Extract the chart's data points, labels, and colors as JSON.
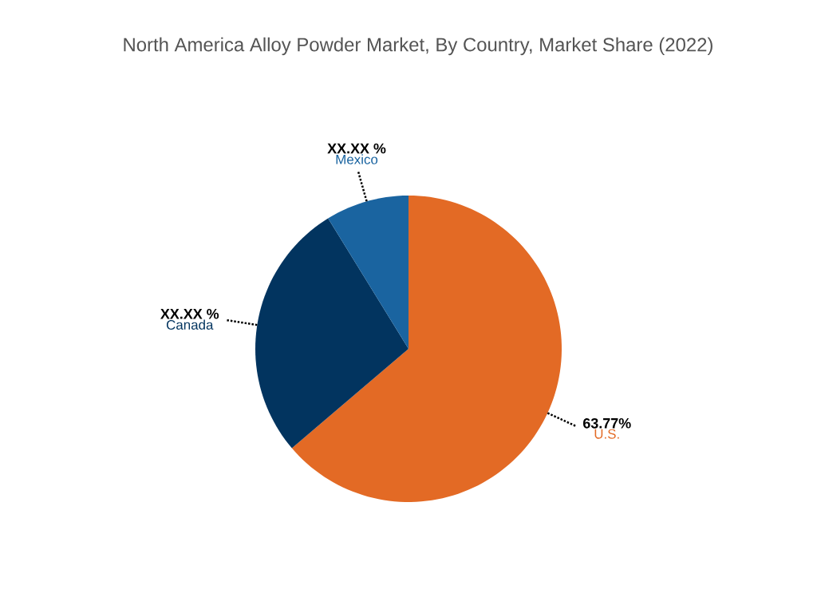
{
  "chart_data": {
    "type": "pie",
    "title": "North America Alloy Powder Market, By Country, Market Share (2022)",
    "categories": [
      "U.S.",
      "Canada",
      "Mexico"
    ],
    "values": [
      63.77,
      27.43,
      8.8
    ],
    "colors": [
      "#e36a25",
      "#02345f",
      "#1a64a0"
    ],
    "value_labels": [
      "63.77%",
      "XX.XX %",
      "XX.XX %"
    ]
  }
}
